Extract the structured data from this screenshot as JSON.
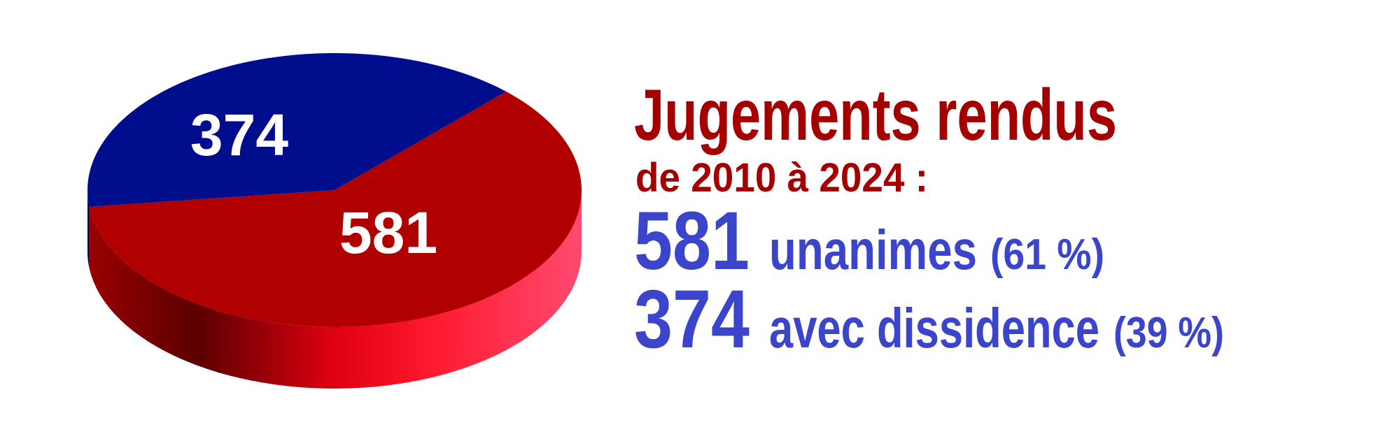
{
  "chart_data": {
    "type": "pie",
    "title": "Jugements rendus",
    "subtitle": "de 2010 à 2024 :",
    "categories": [
      "unanimes",
      "avec dissidence"
    ],
    "values": [
      581,
      374
    ],
    "share_labels": [
      "(61 %)",
      "(39 %)"
    ],
    "colors": [
      "#b00000",
      "#000d8c"
    ]
  }
}
